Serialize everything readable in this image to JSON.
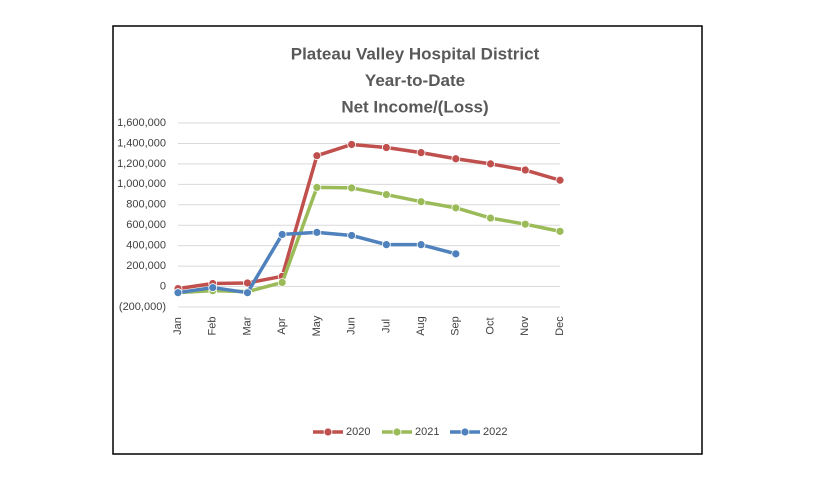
{
  "chart_data": {
    "type": "line",
    "title": [
      "Plateau Valley Hospital District",
      "Year-to-Date",
      "Net Income/(Loss)"
    ],
    "categories": [
      "Jan",
      "Feb",
      "Mar",
      "Apr",
      "May",
      "Jun",
      "Jul",
      "Aug",
      "Sep",
      "Oct",
      "Nov",
      "Dec"
    ],
    "series": [
      {
        "name": "2020",
        "color": "#c0504d",
        "values": [
          -20000,
          30000,
          35000,
          100000,
          1280000,
          1390000,
          1360000,
          1310000,
          1250000,
          1200000,
          1140000,
          1040000
        ]
      },
      {
        "name": "2021",
        "color": "#9bbb59",
        "values": [
          -60000,
          -40000,
          -50000,
          40000,
          970000,
          965000,
          900000,
          830000,
          770000,
          670000,
          610000,
          540000
        ]
      },
      {
        "name": "2022",
        "color": "#4f81bd",
        "values": [
          -60000,
          -10000,
          -60000,
          510000,
          530000,
          500000,
          410000,
          410000,
          320000,
          null,
          null,
          null
        ]
      }
    ],
    "ylim": [
      -200000,
      1600000
    ],
    "yticks": [
      {
        "value": -200000,
        "label": "(200,000)"
      },
      0,
      {
        "value": 200000,
        "label": "200,000"
      },
      {
        "value": 400000,
        "label": "400,000"
      },
      {
        "value": 600000,
        "label": "600,000"
      },
      {
        "value": 800000,
        "label": "800,000"
      },
      {
        "value": 1000000,
        "label": "1,000,000"
      },
      {
        "value": 1200000,
        "label": "1,200,000"
      },
      {
        "value": 1400000,
        "label": "1,400,000"
      },
      {
        "value": 1600000,
        "label": "1,600,000"
      }
    ],
    "grid": true,
    "legend": "bottom"
  }
}
